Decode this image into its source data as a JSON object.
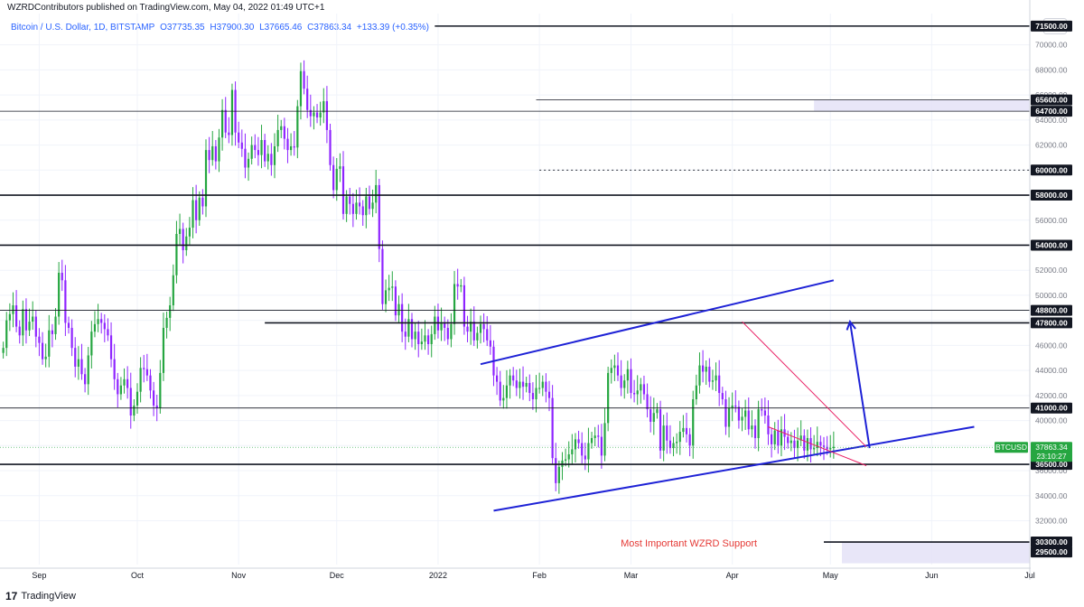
{
  "header": {
    "published": "WZRDContributors published on TradingView.com, May 04, 2022 01:49 UTC+1"
  },
  "symbol": {
    "name": "Bitcoin / U.S. Dollar, 1D, BITSTAMP",
    "open": "O37735.35",
    "high": "H37900.30",
    "low": "L37665.46",
    "close": "C37863.34",
    "change": "+133.39 (+0.35%)"
  },
  "currency": "USD",
  "footer": {
    "brand": "TradingView"
  },
  "chart_data": {
    "type": "candlestick",
    "symbol": "BTCUSD",
    "timeframe": "1D",
    "exchange": "BITSTAMP",
    "ylim": [
      28500,
      72500
    ],
    "y_ticks": [
      70000,
      68000,
      66000,
      64000,
      62000,
      60000,
      58000,
      56000,
      54000,
      52000,
      50000,
      48000,
      46000,
      44000,
      42000,
      40000,
      38000,
      36000,
      34000,
      32000
    ],
    "y_tick_labels": [
      "70000.00",
      "68000.00",
      "66000.00",
      "64000.00",
      "62000.00",
      "60000.00",
      "58000.00",
      "56000.00",
      "54000.00",
      "52000.00",
      "50000.00",
      "48000.00",
      "46000.00",
      "44000.00",
      "42000.00",
      "40000.00",
      "38000.00",
      "36000.00",
      "34000.00",
      "32000.00"
    ],
    "x_ticks": [
      {
        "label": "Sep",
        "day": -27
      },
      {
        "label": "Oct",
        "day": 3
      },
      {
        "label": "Nov",
        "day": 34
      },
      {
        "label": "Dec",
        "day": 64
      },
      {
        "label": "2022",
        "day": 95
      },
      {
        "label": "Feb",
        "day": 126
      },
      {
        "label": "Mar",
        "day": 154
      },
      {
        "label": "Apr",
        "day": 185
      },
      {
        "label": "May",
        "day": 215
      },
      {
        "label": "Jun",
        "day": 246
      },
      {
        "label": "Jul",
        "day": 276
      }
    ],
    "x_range_days": [
      -39,
      276
    ],
    "last_price": "37863.34",
    "countdown": "23:10:27",
    "price_tag": "BTCUSD",
    "colors": {
      "up": "#26a641",
      "down": "#8e24ff",
      "level": "#131722",
      "trend": "#1e22d6",
      "wedge": "#e91e63",
      "zone": "#e6e3f7",
      "arrow": "#1e22d6"
    },
    "horizontal_levels": [
      {
        "price": 71500,
        "label": "71500.00",
        "from_day": 94,
        "style": "bold"
      },
      {
        "price": 65600,
        "label": "65600.00",
        "from_day": 125,
        "style": "thin",
        "zone_to": 64700
      },
      {
        "price": 64700,
        "label": "64700.00",
        "from_day": -61,
        "style": "thin"
      },
      {
        "price": 60000,
        "label": "60000.00",
        "from_day": 126,
        "style": "dotted"
      },
      {
        "price": 58000,
        "label": "58000.00",
        "from_day": -100,
        "style": "bold"
      },
      {
        "price": 54000,
        "label": "54000.00",
        "from_day": -100,
        "style": "bold"
      },
      {
        "price": 48800,
        "label": "48800.00",
        "from_day": -100,
        "style": "thin"
      },
      {
        "price": 47800,
        "label": "47800.00",
        "from_day": 42,
        "style": "bold"
      },
      {
        "price": 41000,
        "label": "41000.00",
        "from_day": -100,
        "style": "thin"
      },
      {
        "price": 36500,
        "label": "36500.00",
        "from_day": -100,
        "style": "bold"
      },
      {
        "price": 30300,
        "label": "30300.00",
        "from_day": 213,
        "style": "bold",
        "zone_to": 28600
      },
      {
        "price": 29500,
        "label": "29500.00",
        "from_day": 300,
        "style": "none"
      }
    ],
    "trendlines": [
      {
        "x1": 108,
        "y1": 44500,
        "x2": 216,
        "y2": 51200,
        "color": "trend"
      },
      {
        "x1": 112,
        "y1": 32800,
        "x2": 259,
        "y2": 39500,
        "color": "trend"
      },
      {
        "x1": 188,
        "y1": 47900,
        "x2": 226,
        "y2": 37900,
        "color": "wedge"
      },
      {
        "x1": 196,
        "y1": 39500,
        "x2": 226,
        "y2": 36400,
        "color": "wedge"
      }
    ],
    "arrows": [
      {
        "x1": 227,
        "y1": 37800,
        "x2": 221,
        "y2": 47900
      }
    ],
    "annotations": [
      {
        "text": "Most Important WZRD Support",
        "day": 180,
        "price": 30300,
        "color": "#e53935"
      }
    ],
    "candles_daily_closes": [
      45800,
      48000,
      48500,
      49200,
      47500,
      46800,
      48900,
      47200,
      47900,
      48300,
      46700,
      46200,
      44900,
      45100,
      47200,
      46900,
      48300,
      51800,
      51200,
      47800,
      47400,
      45800,
      44300,
      44900,
      43700,
      42900,
      45200,
      47100,
      47700,
      48100,
      47800,
      47300,
      46800,
      44900,
      43300,
      42100,
      42800,
      43300,
      42600,
      40400,
      41200,
      42300,
      44200,
      44100,
      43600,
      42400,
      41200,
      41000,
      43800,
      47400,
      48200,
      49200,
      51600,
      54900,
      55300,
      53600,
      54700,
      55400,
      57600,
      56000,
      57800,
      57100,
      61600,
      60800,
      61900,
      60700,
      62600,
      64800,
      63000,
      62800,
      66400,
      63000,
      62200,
      61700,
      60200,
      60900,
      62000,
      61600,
      61200,
      62400,
      60700,
      61300,
      60400,
      61900,
      63200,
      63500,
      62500,
      61600,
      61900,
      61800,
      65100,
      67900,
      66500,
      64800,
      64300,
      64600,
      64200,
      64600,
      65500,
      63200,
      60400,
      58400,
      60100,
      60300,
      56500,
      57900,
      57300,
      56500,
      57400,
      57100,
      56400,
      57900,
      56900,
      57400,
      58800,
      53700,
      49300,
      50400,
      50600,
      50700,
      48400,
      49300,
      47100,
      46700,
      48100,
      46500,
      47100,
      46100,
      46300,
      46800,
      46100,
      46900,
      48300,
      47200,
      47800,
      47400,
      46500,
      47700,
      50900,
      50700,
      50800,
      47500,
      47100,
      47900,
      46400,
      47000,
      47700,
      47300,
      46400,
      45900,
      43600,
      43100,
      41600,
      41800,
      42800,
      43600,
      43200,
      42600,
      43100,
      42700,
      43000,
      42200,
      41700,
      42600,
      42600,
      43100,
      42300,
      41800,
      37000,
      35000,
      36300,
      36800,
      36900,
      37300,
      37700,
      38500,
      38200,
      37200,
      36900,
      38200,
      38600,
      38800,
      38700,
      37200,
      39800,
      43800,
      44200,
      44400,
      43600,
      42600,
      43200,
      44100,
      42200,
      42100,
      42400,
      42900,
      42100,
      40900,
      39900,
      40600,
      40900,
      37600,
      39600,
      38400,
      37800,
      38200,
      38300,
      39100,
      39400,
      38900,
      38000,
      41700,
      42800,
      44400,
      43900,
      44300,
      43100,
      43200,
      43600,
      42200,
      41700,
      39500,
      41000,
      41200,
      41100,
      40000,
      40300,
      40800,
      39300,
      39600,
      38600,
      40900,
      40800,
      40400,
      38900,
      38100,
      39200,
      38000,
      39300,
      38700,
      38200,
      38400,
      37800,
      38400,
      38800,
      37600,
      38600,
      37700,
      37800,
      38300,
      38000,
      37900,
      37700,
      37800,
      37900
    ]
  }
}
